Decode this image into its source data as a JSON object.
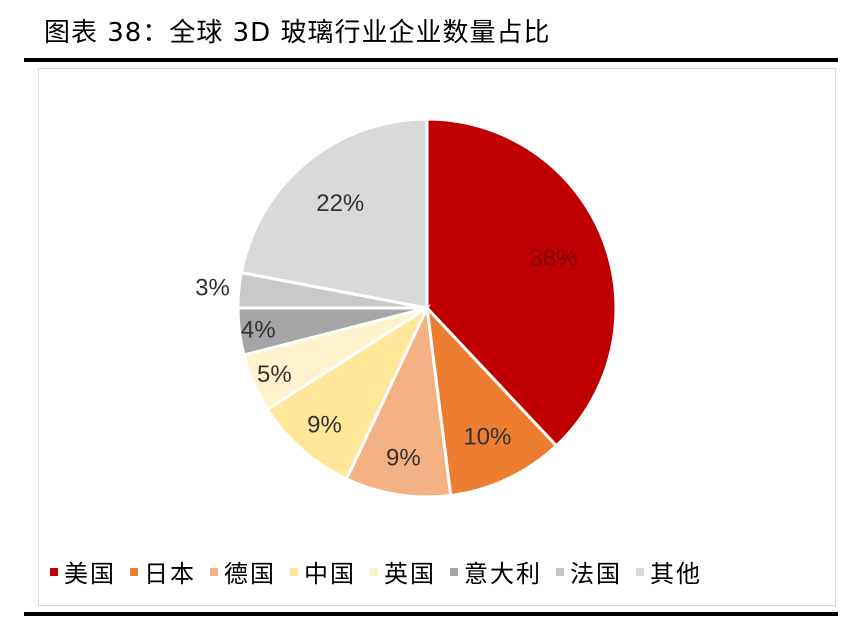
{
  "title": "图表 38：全球 3D 玻璃行业企业数量占比",
  "chart_data": {
    "type": "pie",
    "slices": [
      {
        "label": "美国",
        "value": 38,
        "display": "38%",
        "color": "#C00000"
      },
      {
        "label": "日本",
        "value": 10,
        "display": "10%",
        "color": "#ED7D31"
      },
      {
        "label": "德国",
        "value": 9,
        "display": "9%",
        "color": "#F4B183"
      },
      {
        "label": "中国",
        "value": 9,
        "display": "9%",
        "color": "#FFE699"
      },
      {
        "label": "英国",
        "value": 5,
        "display": "5%",
        "color": "#FFF2CC"
      },
      {
        "label": "意大利",
        "value": 4,
        "display": "4%",
        "color": "#A5A5A5"
      },
      {
        "label": "法国",
        "value": 3,
        "display": "3%",
        "color": "#C9C9C9"
      },
      {
        "label": "其他",
        "value": 22,
        "display": "22%",
        "color": "#D9D9D9"
      }
    ],
    "legend_position": "bottom"
  }
}
